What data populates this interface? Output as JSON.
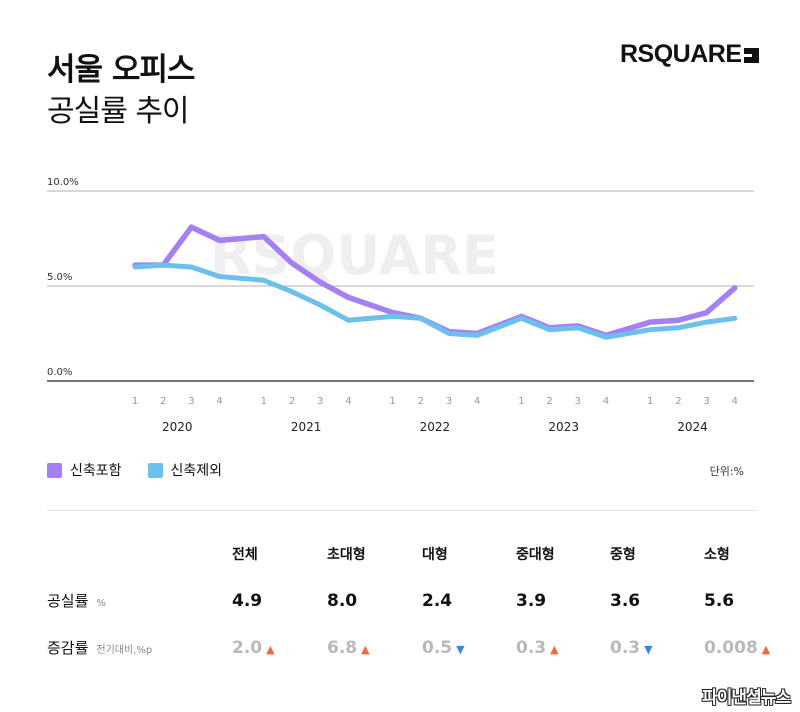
{
  "title": {
    "line1": "서울 오피스",
    "line2": "공실률 추이"
  },
  "brand": "RSQUARE",
  "watermark": "RSQUARE",
  "footer_logo": "파이낸셜뉴스",
  "colors": {
    "purple": "#a47ff5",
    "blue": "#6cc0ec",
    "up": "#ef6a3a",
    "down": "#3a84ef"
  },
  "unit_label": "단위:%",
  "chart_data": {
    "type": "line",
    "x": [
      "2020 1",
      "2020 2",
      "2020 3",
      "2020 4",
      "2021 1",
      "2021 2",
      "2021 3",
      "2021 4",
      "2022 1",
      "2022 2",
      "2022 3",
      "2022 4",
      "2023 1",
      "2023 2",
      "2023 3",
      "2023 4",
      "2024 1",
      "2024 2",
      "2024 3",
      "2024 4"
    ],
    "quarter_labels": [
      "1",
      "2",
      "3",
      "4"
    ],
    "years": [
      "2020",
      "2021",
      "2022",
      "2023",
      "2024"
    ],
    "y_ticks": [
      "0.0%",
      "5.0%",
      "10.0%"
    ],
    "ylim": [
      0,
      10
    ],
    "grid": true,
    "legend_position": "bottom-left",
    "series": [
      {
        "name": "신축포함",
        "color": "#a47ff5",
        "values": [
          6.1,
          6.1,
          8.1,
          7.4,
          7.6,
          6.2,
          5.2,
          4.4,
          3.6,
          3.3,
          2.6,
          2.5,
          3.4,
          2.8,
          2.9,
          2.4,
          3.1,
          3.2,
          3.6,
          4.9
        ]
      },
      {
        "name": "신축제외",
        "color": "#6cc0ec",
        "values": [
          6.0,
          6.1,
          6.0,
          5.5,
          5.3,
          4.7,
          4.0,
          3.2,
          3.4,
          3.3,
          2.5,
          2.4,
          3.3,
          2.7,
          2.8,
          2.3,
          2.7,
          2.8,
          3.1,
          3.3
        ]
      }
    ]
  },
  "stats": {
    "columns": [
      "전체",
      "초대형",
      "대형",
      "중대형",
      "중형",
      "소형"
    ],
    "vacancy": {
      "label": "공실률",
      "unit": "%",
      "values": [
        "4.9",
        "8.0",
        "2.4",
        "3.9",
        "3.6",
        "5.6"
      ]
    },
    "change": {
      "label": "증감률",
      "unit": "전기대비,%p",
      "values": [
        "2.0",
        "6.8",
        "0.5",
        "0.3",
        "0.3",
        "0.008"
      ],
      "directions": [
        "up",
        "up",
        "down",
        "up",
        "down",
        "up"
      ]
    }
  }
}
